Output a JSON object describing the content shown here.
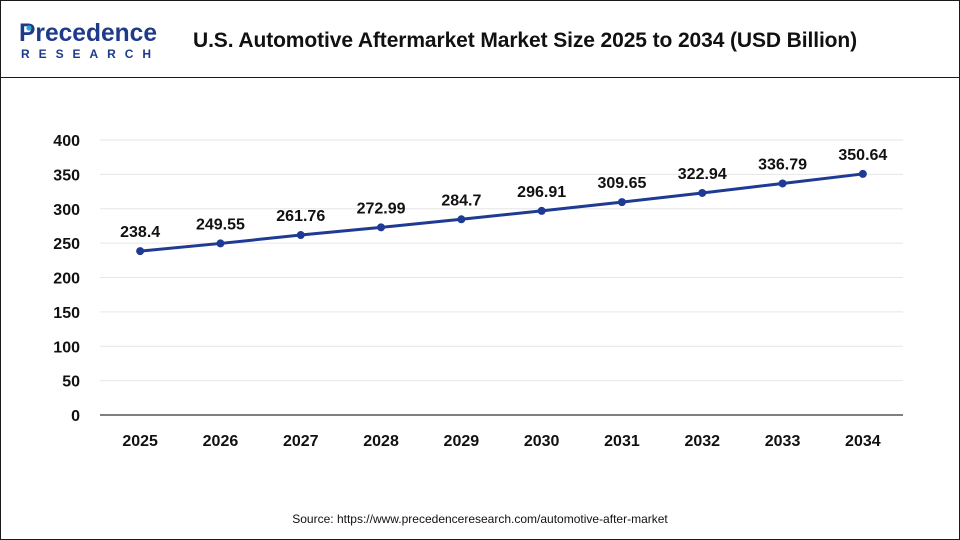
{
  "brand": {
    "logo_top": "Precedence",
    "logo_bottom": "RESEARCH",
    "logo_color": "#1e3a8a",
    "accent_dot_color": "#2aa3d8"
  },
  "title": "U.S. Automotive Aftermarket Market Size 2025 to 2034 (USD Billion)",
  "source": "Source: https://www.precedenceresearch.com/automotive-after-market",
  "colors": {
    "line": "#1f3a93",
    "grid": "#e6e6e6",
    "axis": "#555555"
  },
  "chart_data": {
    "type": "line",
    "categories": [
      "2025",
      "2026",
      "2027",
      "2028",
      "2029",
      "2030",
      "2031",
      "2032",
      "2033",
      "2034"
    ],
    "series": [
      {
        "values": [
          238.4,
          249.55,
          261.76,
          272.99,
          284.7,
          296.91,
          309.65,
          322.94,
          336.79,
          350.64
        ]
      }
    ],
    "data_labels": [
      "238.4",
      "249.55",
      "261.76",
      "272.99",
      "284.7",
      "296.91",
      "309.65",
      "322.94",
      "336.79",
      "350.64"
    ],
    "yticks": [
      0,
      50,
      100,
      150,
      200,
      250,
      300,
      350,
      400
    ],
    "ylim": [
      0,
      400
    ],
    "grid": true,
    "legend": "none"
  }
}
